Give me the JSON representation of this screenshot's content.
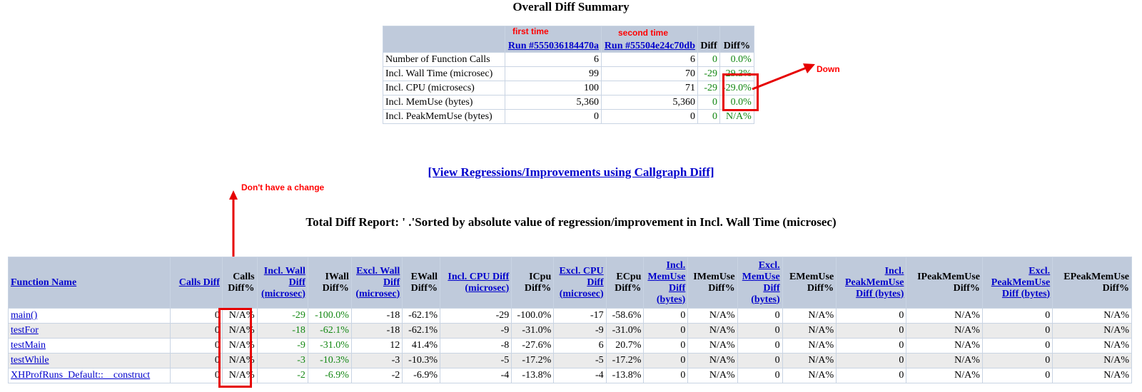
{
  "summary": {
    "title": "Overall Diff Summary",
    "notes": {
      "first_time": "first time",
      "second_time": "second time",
      "down": "Down"
    },
    "headers": {
      "run1": "Run #555036184470a",
      "run2": "Run #55504e24c70db",
      "diff": "Diff",
      "diff_pct": "Diff%"
    },
    "rows": [
      {
        "label": "Number of Function Calls",
        "run1": "6",
        "run2": "6",
        "diff": "0",
        "diff_pct": "0.0%"
      },
      {
        "label": "Incl. Wall Time (microsec)",
        "run1": "99",
        "run2": "70",
        "diff": "-29",
        "diff_pct": "-29.3%"
      },
      {
        "label": "Incl. CPU (microsecs)",
        "run1": "100",
        "run2": "71",
        "diff": "-29",
        "diff_pct": "-29.0%"
      },
      {
        "label": "Incl. MemUse (bytes)",
        "run1": "5,360",
        "run2": "5,360",
        "diff": "0",
        "diff_pct": "0.0%"
      },
      {
        "label": "Incl. PeakMemUse (bytes)",
        "run1": "0",
        "run2": "0",
        "diff": "0",
        "diff_pct": "N/A%"
      }
    ]
  },
  "callgraph_link": "[View Regressions/Improvements using Callgraph Diff]",
  "annotation_no_change": "Don't have a change",
  "report": {
    "title": "Total Diff Report: ' .'Sorted by absolute value of regression/improvement in Incl. Wall Time (microsec)",
    "headers": {
      "function_name": "Function Name",
      "calls_diff": "Calls Diff",
      "calls_diff_pct": "Calls Diff%",
      "incl_wall_diff": "Incl. Wall Diff (microsec)",
      "iwall_diff_pct": "IWall Diff%",
      "excl_wall_diff": "Excl. Wall Diff (microsec)",
      "ewall_diff_pct": "EWall Diff%",
      "incl_cpu_diff": "Incl. CPU Diff (microsec)",
      "icpu_diff_pct": "ICpu Diff%",
      "excl_cpu_diff": "Excl. CPU Diff (microsec)",
      "ecpu_diff_pct": "ECpu Diff%",
      "incl_memuse_diff": "Incl. MemUse Diff (bytes)",
      "imemuse_diff_pct": "IMemUse Diff%",
      "excl_memuse_diff": "Excl. MemUse Diff (bytes)",
      "ememuse_diff_pct": "EMemUse Diff%",
      "incl_peakmemuse_diff": "Incl. PeakMemUse Diff (bytes)",
      "ipeakmemuse_diff_pct": "IPeakMemUse Diff%",
      "excl_peakmemuse_diff": "Excl. PeakMemUse Diff (bytes)",
      "epeakmemuse_diff_pct": "EPeakMemUse Diff%"
    },
    "rows": [
      {
        "fn": "main()",
        "cells": [
          "0",
          "N/A%",
          "-29",
          "-100.0%",
          "-18",
          "-62.1%",
          "-29",
          "-100.0%",
          "-17",
          "-58.6%",
          "0",
          "N/A%",
          "0",
          "N/A%",
          "0",
          "N/A%",
          "0",
          "N/A%"
        ]
      },
      {
        "fn": "testFor",
        "cells": [
          "0",
          "N/A%",
          "-18",
          "-62.1%",
          "-18",
          "-62.1%",
          "-9",
          "-31.0%",
          "-9",
          "-31.0%",
          "0",
          "N/A%",
          "0",
          "N/A%",
          "0",
          "N/A%",
          "0",
          "N/A%"
        ]
      },
      {
        "fn": "testMain",
        "cells": [
          "0",
          "N/A%",
          "-9",
          "-31.0%",
          "12",
          "41.4%",
          "-8",
          "-27.6%",
          "6",
          "20.7%",
          "0",
          "N/A%",
          "0",
          "N/A%",
          "0",
          "N/A%",
          "0",
          "N/A%"
        ]
      },
      {
        "fn": "testWhile",
        "cells": [
          "0",
          "N/A%",
          "-3",
          "-10.3%",
          "-3",
          "-10.3%",
          "-5",
          "-17.2%",
          "-5",
          "-17.2%",
          "0",
          "N/A%",
          "0",
          "N/A%",
          "0",
          "N/A%",
          "0",
          "N/A%"
        ]
      },
      {
        "fn": "XHProfRuns_Default::__construct",
        "cells": [
          "0",
          "N/A%",
          "-2",
          "-6.9%",
          "-2",
          "-6.9%",
          "-4",
          "-13.8%",
          "-4",
          "-13.8%",
          "0",
          "N/A%",
          "0",
          "N/A%",
          "0",
          "N/A%",
          "0",
          "N/A%"
        ]
      }
    ]
  },
  "colors": {
    "header_bg": "#bfcadb",
    "link": "#0000cc",
    "improvement": "#128712",
    "annotation": "#ff0000",
    "alt_row": "#ebebeb"
  }
}
